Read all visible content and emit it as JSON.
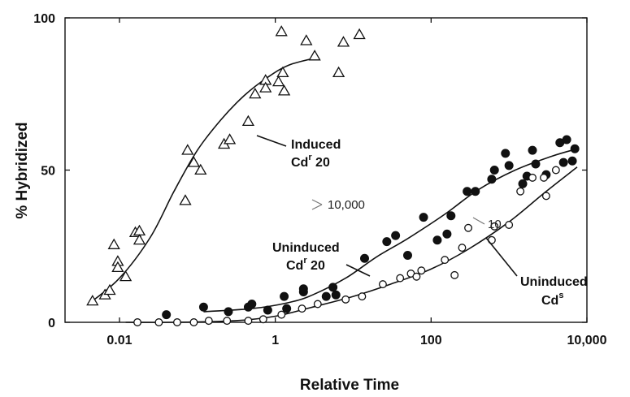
{
  "chart_data": {
    "type": "scatter",
    "title": "",
    "xlabel": "Relative Time",
    "ylabel": "% Hybridized",
    "xscale": "log",
    "xlim": [
      0.002,
      10000
    ],
    "ylim": [
      0,
      100
    ],
    "x_ticks": [
      {
        "value": 0.01,
        "label": "0.01"
      },
      {
        "value": 1,
        "label": "1"
      },
      {
        "value": 100,
        "label": "100"
      },
      {
        "value": 10000,
        "label": "10,000"
      }
    ],
    "y_ticks": [
      {
        "value": 0,
        "label": "0"
      },
      {
        "value": 50,
        "label": "50"
      },
      {
        "value": 100,
        "label": "100"
      }
    ],
    "grid": false,
    "legend": "none",
    "series": [
      {
        "marker": "open-triangle",
        "points": [
          [
            0.0045,
            7
          ],
          [
            0.0065,
            9
          ],
          [
            0.0075,
            10.5
          ],
          [
            0.0085,
            25.5
          ],
          [
            0.0095,
            20
          ],
          [
            0.0095,
            18
          ],
          [
            0.012,
            15
          ],
          [
            0.016,
            29.5
          ],
          [
            0.018,
            30
          ],
          [
            0.018,
            27
          ],
          [
            0.07,
            40
          ],
          [
            0.075,
            56.5
          ],
          [
            0.09,
            52.5
          ],
          [
            0.11,
            50
          ],
          [
            0.22,
            58.5
          ],
          [
            0.26,
            60
          ],
          [
            0.45,
            66
          ],
          [
            0.55,
            75
          ],
          [
            0.75,
            79.5
          ],
          [
            0.75,
            77
          ],
          [
            1.1,
            79
          ],
          [
            1.2,
            95.5
          ],
          [
            1.25,
            82
          ],
          [
            1.3,
            76
          ],
          [
            2.5,
            92.5
          ],
          [
            3.2,
            87.5
          ],
          [
            6.5,
            82
          ],
          [
            7.5,
            92
          ],
          [
            12,
            94.5
          ]
        ],
        "curve": [
          [
            0.004,
            6
          ],
          [
            0.01,
            14.5
          ],
          [
            0.025,
            28
          ],
          [
            0.05,
            43
          ],
          [
            0.1,
            56.5
          ],
          [
            0.2,
            66.5
          ],
          [
            0.4,
            74.5
          ],
          [
            0.8,
            80.5
          ],
          [
            1.5,
            84.5
          ],
          [
            3.5,
            87
          ]
        ]
      },
      {
        "marker": "filled-circle",
        "points": [
          [
            0.04,
            2.5
          ],
          [
            0.12,
            5
          ],
          [
            0.25,
            3.5
          ],
          [
            0.45,
            5
          ],
          [
            0.5,
            6
          ],
          [
            0.8,
            4
          ],
          [
            1.3,
            8.5
          ],
          [
            1.4,
            4.5
          ],
          [
            2.3,
            10
          ],
          [
            2.3,
            11
          ],
          [
            4.5,
            8.5
          ],
          [
            5.5,
            11.5
          ],
          [
            6,
            9
          ],
          [
            14,
            21
          ],
          [
            27,
            26.5
          ],
          [
            35,
            28.5
          ],
          [
            50,
            22
          ],
          [
            80,
            34.5
          ],
          [
            120,
            27
          ],
          [
            160,
            29
          ],
          [
            180,
            35
          ],
          [
            290,
            43
          ],
          [
            370,
            43
          ],
          [
            600,
            47
          ],
          [
            650,
            50
          ],
          [
            900,
            55.5
          ],
          [
            1000,
            51.5
          ],
          [
            1500,
            45.5
          ],
          [
            1700,
            48
          ],
          [
            2000,
            56.5
          ],
          [
            2200,
            52
          ],
          [
            3000,
            48.5
          ],
          [
            4500,
            59
          ],
          [
            5000,
            52.5
          ],
          [
            5500,
            60
          ],
          [
            6500,
            53
          ],
          [
            7000,
            57
          ]
        ],
        "curve": [
          [
            0.12,
            3.5
          ],
          [
            0.5,
            4.5
          ],
          [
            1.5,
            6.5
          ],
          [
            3,
            9
          ],
          [
            8,
            14.5
          ],
          [
            20,
            21.5
          ],
          [
            50,
            27.5
          ],
          [
            150,
            35.5
          ],
          [
            400,
            43.5
          ],
          [
            1200,
            50
          ],
          [
            3500,
            54.5
          ],
          [
            7500,
            57
          ]
        ]
      },
      {
        "marker": "open-circle",
        "points": [
          [
            0.017,
            0
          ],
          [
            0.032,
            0
          ],
          [
            0.055,
            0
          ],
          [
            0.09,
            0
          ],
          [
            0.14,
            0.5
          ],
          [
            0.24,
            0.5
          ],
          [
            0.45,
            0.5
          ],
          [
            0.7,
            1
          ],
          [
            1.2,
            2.5
          ],
          [
            2.2,
            4.5
          ],
          [
            3.5,
            6
          ],
          [
            8,
            7.5
          ],
          [
            13,
            8.5
          ],
          [
            24,
            12.5
          ],
          [
            40,
            14.5
          ],
          [
            55,
            16
          ],
          [
            65,
            15
          ],
          [
            75,
            17
          ],
          [
            150,
            20.5
          ],
          [
            200,
            15.5
          ],
          [
            250,
            24.5
          ],
          [
            300,
            31
          ],
          [
            600,
            27
          ],
          [
            650,
            31.5
          ],
          [
            1000,
            32
          ],
          [
            1400,
            43
          ],
          [
            2000,
            47.5
          ],
          [
            2800,
            47.5
          ],
          [
            3000,
            41.5
          ],
          [
            4000,
            50
          ]
        ],
        "curve": [
          [
            0.012,
            0
          ],
          [
            0.05,
            0
          ],
          [
            0.3,
            0.5
          ],
          [
            1,
            2
          ],
          [
            3,
            5
          ],
          [
            10,
            8.5
          ],
          [
            30,
            12.5
          ],
          [
            100,
            17.5
          ],
          [
            300,
            24
          ],
          [
            1000,
            33
          ],
          [
            3000,
            43
          ],
          [
            7500,
            51
          ]
        ]
      }
    ],
    "annotations": [
      {
        "id": "induced",
        "lines": [
          "Induced",
          "Cd"
        ],
        "sup": "r",
        "suffix": " 20"
      },
      {
        "id": "uninduced_cdr",
        "lines": [
          "Uninduced",
          "Cd"
        ],
        "sup": "r",
        "suffix": " 20"
      },
      {
        "id": "uninduced_cds",
        "lines": [
          "Uninduced",
          "Cd"
        ],
        "sup": "s",
        "suffix": ""
      },
      {
        "id": "ratio_10000",
        "text": "10,000"
      },
      {
        "id": "ratio_10",
        "text": "10"
      }
    ]
  }
}
